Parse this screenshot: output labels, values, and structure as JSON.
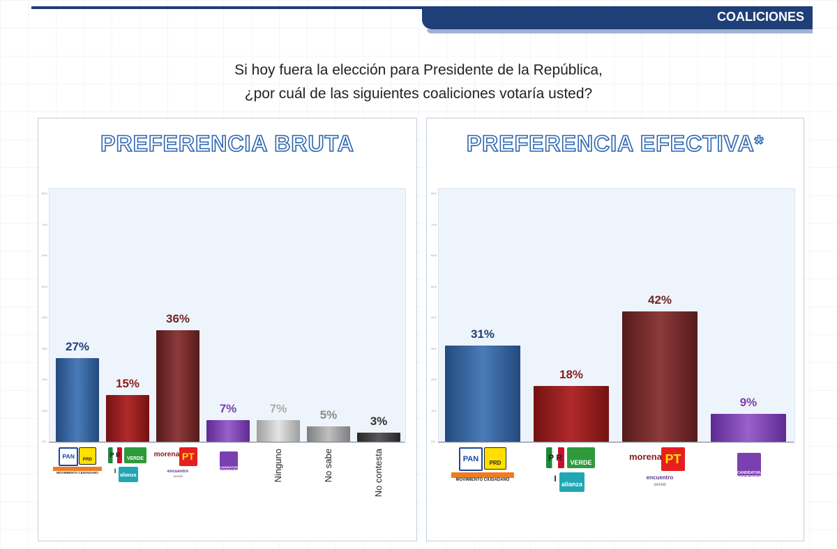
{
  "header": {
    "tab_label": "COALICIONES"
  },
  "question": {
    "line1": "Si hoy fuera la elección para Presidente de la República,",
    "line2": "¿por cuál de las siguientes coaliciones votaría usted?"
  },
  "logos": {
    "pan": "PAN",
    "prd": "PRD",
    "mc": "MOVIMIENTO CIUDADANO",
    "pri": "PRI",
    "verde": "VERDE",
    "alianza": "alianza",
    "morena": "morena",
    "pt": "PT",
    "es": "encuentro",
    "es_sub": "social",
    "indep": "CANDIDATURA INDEPENDIENTE"
  },
  "colors": {
    "header": "#1f3f78",
    "pan_bar": "#2f5f98",
    "pri_bar": "#8e1b1b",
    "morena_bar": "#6e2525",
    "indep_bar": "#7a3fb0",
    "ninguno_bar": "#b8b8b8",
    "nosabe_bar": "#9a9a9a",
    "nocontesta_bar": "#3a3a3a"
  },
  "chart_data": [
    {
      "type": "bar",
      "title": "PREFERENCIA BRUTA",
      "categories": [
        "PAN-PRD-MC",
        "PRI-PVEM-Nueva Alianza",
        "Morena-PT-PES",
        "Independiente",
        "Ninguno",
        "No sabe",
        "No contesta"
      ],
      "category_labels": [
        "",
        "",
        "",
        "",
        "Ninguno",
        "No sabe",
        "No contesta"
      ],
      "values": [
        27,
        15,
        36,
        7,
        7,
        5,
        3
      ],
      "value_labels": [
        "27%",
        "15%",
        "36%",
        "7%",
        "7%",
        "5%",
        "3%"
      ],
      "ylim": [
        0,
        80
      ],
      "yticks": [
        "0%",
        "10%",
        "20%",
        "30%",
        "40%",
        "50%",
        "60%",
        "70%",
        "80%"
      ],
      "grid": false,
      "legend": "none"
    },
    {
      "type": "bar",
      "title": "PREFERENCIA EFECTIVA*",
      "categories": [
        "PAN-PRD-MC",
        "PRI-PVEM-Nueva Alianza",
        "Morena-PT-PES",
        "Independiente"
      ],
      "values": [
        31,
        18,
        42,
        9
      ],
      "value_labels": [
        "31%",
        "18%",
        "42%",
        "9%"
      ],
      "ylim": [
        0,
        80
      ],
      "yticks": [
        "0%",
        "10%",
        "20%",
        "30%",
        "40%",
        "50%",
        "60%",
        "70%",
        "80%"
      ],
      "grid": false,
      "legend": "none"
    }
  ]
}
